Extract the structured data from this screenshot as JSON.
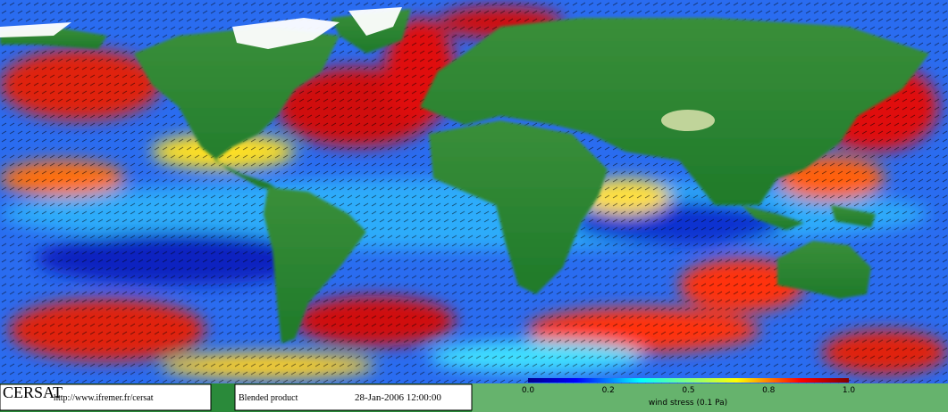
{
  "footer": {
    "brand": "CERSAT",
    "url": "http://www.ifremer.fr/cersat",
    "product": "Blended product",
    "date": "28-Jan-2006 12:00:00"
  },
  "colorbar": {
    "ticks": [
      "0.0",
      "0.2",
      "0.5",
      "0.8",
      "1.0"
    ],
    "label": "wind stress (0.1 Pa)"
  }
}
